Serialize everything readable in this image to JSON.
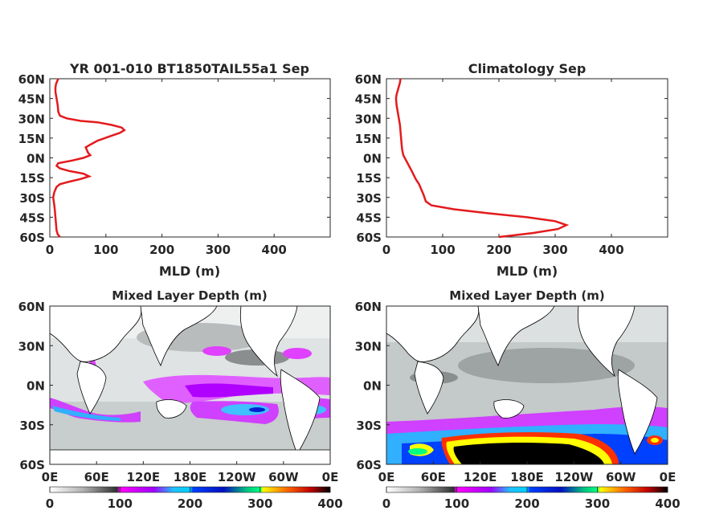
{
  "chart_data": [
    {
      "type": "line",
      "title": "YR 001-010 BT1850TAIL55a1 Sep",
      "xlabel": "MLD (m)",
      "ylabel": "",
      "xlim": [
        0,
        500
      ],
      "ylim": [
        -60,
        60
      ],
      "xticks": [
        "0",
        "100",
        "200",
        "300",
        "400"
      ],
      "yticks": [
        "60N",
        "45N",
        "30N",
        "15N",
        "0N",
        "15S",
        "30S",
        "45S",
        "60S"
      ],
      "series": [
        {
          "color": "#e41a1c",
          "x": [
            18,
            14,
            12,
            11,
            10,
            9,
            8,
            7,
            6,
            7,
            8,
            10,
            12,
            18,
            35,
            55,
            70,
            60,
            35,
            18,
            12,
            15,
            40,
            60,
            72,
            68,
            66,
            64,
            72,
            85,
            105,
            125,
            133,
            128,
            110,
            85,
            55,
            30,
            18,
            15,
            14,
            12,
            10,
            10,
            11,
            13,
            15
          ],
          "y": [
            -60,
            -58,
            -55,
            -50,
            -45,
            -40,
            -36,
            -33,
            -30,
            -28,
            -26,
            -24,
            -22,
            -20,
            -18,
            -16,
            -14,
            -12,
            -10,
            -8,
            -6,
            -4,
            -2,
            0,
            2,
            4,
            6,
            8,
            10,
            13,
            16,
            19,
            21,
            23,
            25,
            27,
            28,
            30,
            32,
            35,
            40,
            45,
            50,
            53,
            56,
            58,
            60
          ]
        }
      ]
    },
    {
      "type": "line",
      "title": "Climatology Sep",
      "xlabel": "MLD (m)",
      "ylabel": "",
      "xlim": [
        0,
        500
      ],
      "ylim": [
        -60,
        60
      ],
      "xticks": [
        "0",
        "100",
        "200",
        "300",
        "400"
      ],
      "yticks": [
        "60N",
        "45N",
        "30N",
        "15N",
        "0N",
        "15S",
        "30S",
        "45S",
        "60S"
      ],
      "series": [
        {
          "color": "#e41a1c",
          "x": [
            200,
            260,
            305,
            320,
            300,
            250,
            180,
            120,
            80,
            70,
            66,
            62,
            58,
            52,
            45,
            40,
            35,
            30,
            28,
            27,
            26,
            25,
            24,
            22,
            20,
            18,
            17,
            18,
            20,
            22,
            24,
            25
          ],
          "y": [
            -60,
            -57,
            -54,
            -51,
            -48,
            -45,
            -42,
            -39,
            -36,
            -33,
            -28,
            -24,
            -20,
            -16,
            -10,
            -6,
            -2,
            2,
            6,
            10,
            15,
            20,
            25,
            30,
            35,
            40,
            45,
            48,
            51,
            54,
            57,
            60
          ]
        }
      ]
    },
    {
      "type": "heatmap",
      "title": "Mixed Layer Depth (m)",
      "xticks": [
        "0E",
        "60E",
        "120E",
        "180E",
        "120W",
        "60W",
        "0E"
      ],
      "yticks": [
        "60N",
        "30N",
        "0N",
        "30S",
        "60S"
      ],
      "colorbar": {
        "range": [
          0,
          400
        ],
        "ticks": [
          "0",
          "100",
          "200",
          "300",
          "400"
        ]
      }
    },
    {
      "type": "heatmap",
      "title": "Mixed Layer Depth (m)",
      "xticks": [
        "0E",
        "60E",
        "120E",
        "180E",
        "120W",
        "60W",
        "0E"
      ],
      "yticks": [
        "60N",
        "30N",
        "0N",
        "30S",
        "60S"
      ],
      "colorbar": {
        "range": [
          0,
          400
        ],
        "ticks": [
          "0",
          "100",
          "200",
          "300",
          "400"
        ]
      }
    }
  ],
  "colormap": [
    "#ffffff",
    "#a0a0a0",
    "#303030",
    "#ff00ff",
    "#00d0ff",
    "#0030ff",
    "#00ff80",
    "#ffff00",
    "#ff3000",
    "#000000"
  ]
}
